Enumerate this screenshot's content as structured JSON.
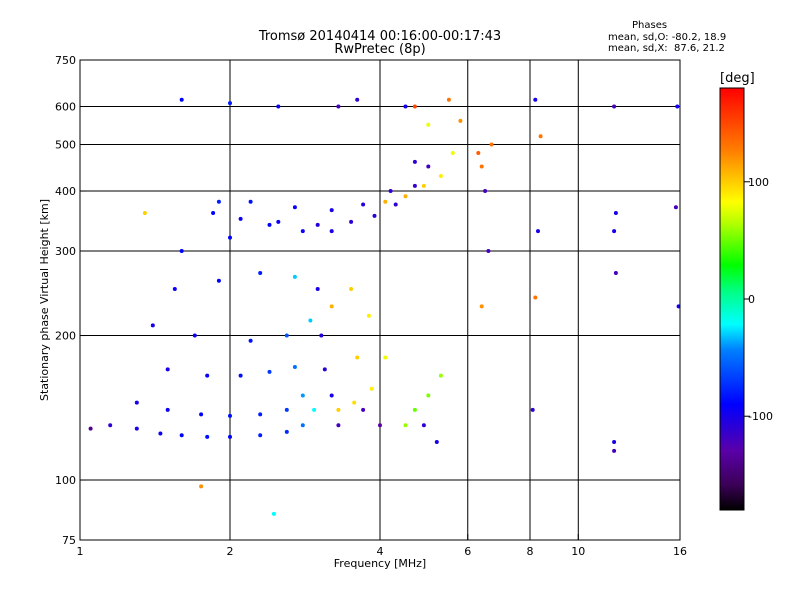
{
  "title": "Tromsø 20140414 00:16:00-00:17:43",
  "subtitle": "RwPretec (8p)",
  "stats": {
    "heading": "Phases",
    "line_o": "mean, sd,O: -80.2, 18.9",
    "line_x": "mean, sd,X:  87.6, 21.2"
  },
  "chart_data": {
    "type": "scatter",
    "xlabel": "Frequency [MHz]",
    "ylabel": "Stationary phase Virtual Height [km]",
    "x_scale": "log",
    "y_scale": "log",
    "xlim": [
      1,
      16
    ],
    "ylim": [
      75,
      750
    ],
    "x_ticks": [
      1,
      2,
      4,
      6,
      8,
      10,
      16
    ],
    "x_tick_labels": [
      "1",
      "2",
      "4",
      "6",
      "8",
      "10",
      "16"
    ],
    "x_grid": [
      2,
      4,
      6,
      8,
      10
    ],
    "y_ticks": [
      75,
      100,
      200,
      300,
      400,
      500,
      600,
      750
    ],
    "y_tick_labels": [
      "75",
      "100",
      "200",
      "300",
      "400",
      "500",
      "600",
      "750"
    ],
    "y_grid": [
      100,
      200,
      300,
      400,
      500,
      600
    ],
    "grid": true,
    "colorbar": {
      "label": "[deg]",
      "ticks": [
        100,
        0,
        -100
      ],
      "tick_labels": [
        "100",
        "0",
        "-100"
      ],
      "range": [
        -180,
        180
      ]
    },
    "series": [
      {
        "values": [
          [
            1.05,
            128,
            -140
          ],
          [
            1.15,
            130,
            -110
          ],
          [
            1.3,
            128,
            -100
          ],
          [
            1.45,
            125,
            -95
          ],
          [
            1.6,
            124,
            -90
          ],
          [
            1.8,
            123,
            -85
          ],
          [
            2.0,
            123,
            -90
          ],
          [
            2.3,
            124,
            -80
          ],
          [
            2.6,
            126,
            -75
          ],
          [
            2.8,
            130,
            -50
          ],
          [
            2.95,
            140,
            -20
          ],
          [
            1.3,
            145,
            -100
          ],
          [
            1.5,
            140,
            -95
          ],
          [
            1.75,
            137,
            -90
          ],
          [
            2.0,
            136,
            -85
          ],
          [
            2.3,
            137,
            -80
          ],
          [
            2.6,
            140,
            -70
          ],
          [
            2.8,
            150,
            -40
          ],
          [
            1.5,
            170,
            -100
          ],
          [
            1.8,
            165,
            -95
          ],
          [
            2.1,
            165,
            -85
          ],
          [
            2.4,
            168,
            -70
          ],
          [
            2.7,
            172,
            -50
          ],
          [
            1.4,
            210,
            -100
          ],
          [
            1.7,
            200,
            -95
          ],
          [
            2.2,
            195,
            -85
          ],
          [
            2.6,
            200,
            -60
          ],
          [
            2.9,
            215,
            -30
          ],
          [
            1.55,
            250,
            -95
          ],
          [
            1.9,
            260,
            -90
          ],
          [
            2.3,
            270,
            -80
          ],
          [
            2.7,
            265,
            -30
          ],
          [
            1.6,
            300,
            -90
          ],
          [
            2.0,
            320,
            -90
          ],
          [
            2.4,
            340,
            -90
          ],
          [
            2.8,
            330,
            -95
          ],
          [
            3.2,
            330,
            -100
          ],
          [
            1.85,
            360,
            -90
          ],
          [
            2.1,
            350,
            -95
          ],
          [
            2.5,
            345,
            -95
          ],
          [
            3.0,
            340,
            -105
          ],
          [
            3.5,
            345,
            -110
          ],
          [
            3.9,
            355,
            -110
          ],
          [
            4.3,
            375,
            -110
          ],
          [
            4.7,
            410,
            -115
          ],
          [
            5.0,
            450,
            -120
          ],
          [
            1.9,
            380,
            -80
          ],
          [
            2.2,
            380,
            -85
          ],
          [
            2.7,
            370,
            -95
          ],
          [
            3.2,
            365,
            -100
          ],
          [
            3.7,
            375,
            -105
          ],
          [
            4.2,
            400,
            -110
          ],
          [
            4.7,
            460,
            -110
          ],
          [
            3.3,
            600,
            -120
          ],
          [
            3.6,
            620,
            -110
          ],
          [
            4.5,
            600,
            -100
          ],
          [
            1.6,
            620,
            -90
          ],
          [
            2.0,
            610,
            -80
          ],
          [
            2.5,
            600,
            -95
          ],
          [
            3.0,
            250,
            -100
          ],
          [
            3.05,
            200,
            -105
          ],
          [
            3.1,
            170,
            -110
          ],
          [
            3.2,
            150,
            -100
          ],
          [
            3.3,
            130,
            -120
          ],
          [
            3.7,
            140,
            -120
          ],
          [
            4.0,
            130,
            -130
          ],
          [
            4.1,
            380,
            110
          ],
          [
            4.5,
            390,
            110
          ],
          [
            4.9,
            410,
            100
          ],
          [
            5.3,
            430,
            90
          ],
          [
            5.6,
            480,
            80
          ],
          [
            5.8,
            560,
            120
          ],
          [
            5.5,
            620,
            130
          ],
          [
            5.0,
            550,
            80
          ],
          [
            4.7,
            600,
            150
          ],
          [
            3.3,
            140,
            100
          ],
          [
            3.55,
            145,
            95
          ],
          [
            3.85,
            155,
            90
          ],
          [
            4.1,
            180,
            80
          ],
          [
            3.2,
            230,
            110
          ],
          [
            3.5,
            250,
            100
          ],
          [
            3.8,
            220,
            90
          ],
          [
            3.6,
            180,
            100
          ],
          [
            4.5,
            130,
            60
          ],
          [
            4.7,
            140,
            50
          ],
          [
            5.0,
            150,
            55
          ],
          [
            5.3,
            165,
            60
          ],
          [
            4.9,
            130,
            -110
          ],
          [
            5.2,
            120,
            -100
          ],
          [
            6.3,
            480,
            140
          ],
          [
            6.4,
            450,
            130
          ],
          [
            6.5,
            400,
            -120
          ],
          [
            6.6,
            300,
            -120
          ],
          [
            6.4,
            230,
            120
          ],
          [
            6.7,
            500,
            130
          ],
          [
            8.2,
            620,
            -100
          ],
          [
            8.4,
            520,
            130
          ],
          [
            8.3,
            330,
            -100
          ],
          [
            8.2,
            240,
            130
          ],
          [
            8.1,
            140,
            -110
          ],
          [
            11.8,
            600,
            -120
          ],
          [
            11.9,
            360,
            -100
          ],
          [
            11.8,
            330,
            -100
          ],
          [
            11.9,
            270,
            -120
          ],
          [
            11.8,
            120,
            -100
          ],
          [
            11.8,
            115,
            -120
          ],
          [
            15.8,
            600,
            -100
          ],
          [
            15.7,
            370,
            -120
          ],
          [
            15.9,
            230,
            -100
          ],
          [
            1.35,
            360,
            100
          ],
          [
            1.75,
            97,
            120
          ],
          [
            2.45,
            85,
            -20
          ]
        ]
      }
    ]
  }
}
